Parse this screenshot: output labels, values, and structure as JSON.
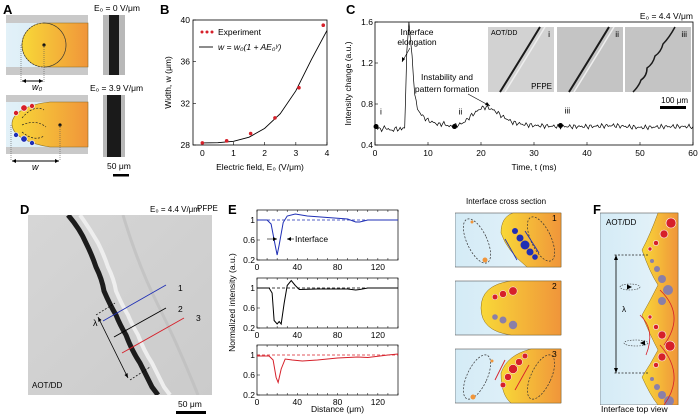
{
  "panels": {
    "A": {
      "label": "A",
      "top_field": "E₀ = 0 V/μm",
      "bottom_field": "E₀ = 3.9 V/μm",
      "w0_label": "w₀",
      "w_label": "w",
      "scalebar": "50 μm"
    },
    "B": {
      "label": "B",
      "legend_experiment": "Experiment",
      "legend_fit": "w = w₀(1 + AE₀ᵞ)"
    },
    "C": {
      "label": "C",
      "field": "E₀ = 4.4 V/μm",
      "annot_elongation_1": "Interface",
      "annot_elongation_2": "elongation",
      "annot_instability_1": "Instability and",
      "annot_instability_2": "pattern formation",
      "inset_labels": [
        "i",
        "ii",
        "iii"
      ],
      "inset_aot": "AOT/DD",
      "inset_pfpe": "PFPE",
      "scalebar": "100 μm",
      "point_labels": [
        "i",
        "ii",
        "iii"
      ]
    },
    "D": {
      "label": "D",
      "field": "E₀ = 4.4 V/μm",
      "pfpe": "PFPE",
      "aot": "AOT/DD",
      "lambda": "λ",
      "line_labels": [
        "1",
        "2",
        "3"
      ],
      "scalebar": "50 μm"
    },
    "E": {
      "label": "E",
      "interface_annot": "Interface",
      "cross_section_title": "Interface cross section",
      "cross_section_numbers": [
        "1",
        "2",
        "3"
      ]
    },
    "F": {
      "label": "F",
      "aot": "AOT/DD",
      "lambda": "λ",
      "caption": "Interface top view"
    }
  },
  "colors": {
    "blue": "#1f2fb5",
    "red": "#d6202a",
    "orange": "#f29a3c",
    "yellow": "#f7d23a",
    "lightblue": "#d8ecf6",
    "gray": "#c8c8c8",
    "ion_neg_gray": "#8a7fa8"
  },
  "chart_data": [
    {
      "id": "B",
      "type": "scatter",
      "title": "",
      "xlabel": "Electric field, E₀ (V/μm)",
      "ylabel": "Width, w (μm)",
      "xlim": [
        -0.3,
        4
      ],
      "ylim": [
        28,
        40
      ],
      "xticks": [
        0,
        1,
        2,
        3,
        4
      ],
      "yticks": [
        28,
        32,
        36,
        40
      ],
      "series": [
        {
          "name": "Experiment",
          "x": [
            0,
            0.78,
            1.55,
            2.33,
            3.1,
            3.88
          ],
          "y": [
            28.2,
            28.4,
            29.1,
            30.6,
            33.5,
            39.5
          ]
        },
        {
          "name": "w = w₀(1 + AE₀ᵞ)",
          "x": [
            0,
            0.5,
            1.0,
            1.5,
            2.0,
            2.5,
            3.0,
            3.5,
            4.0
          ],
          "y": [
            28.2,
            28.22,
            28.35,
            28.75,
            29.6,
            31.0,
            33.2,
            36.2,
            39.0
          ]
        }
      ]
    },
    {
      "id": "C",
      "type": "line",
      "xlabel": "Time, t (ms)",
      "ylabel": "Intensity change (a.u.)",
      "xlim": [
        0,
        60
      ],
      "ylim": [
        0.4,
        1.6
      ],
      "xticks": [
        0,
        10,
        20,
        30,
        40,
        50,
        60
      ],
      "yticks": [
        0.4,
        0.8,
        1.2,
        1.6
      ],
      "series": [
        {
          "name": "intensity",
          "x": [
            0,
            1,
            2,
            3,
            4,
            5,
            5.6,
            6.0,
            6.4,
            7.0,
            7.5,
            8,
            9,
            10,
            11,
            12,
            13,
            14,
            15,
            16,
            17,
            18,
            19,
            20,
            21,
            22,
            23,
            24,
            25,
            26,
            28,
            30,
            35,
            40,
            45,
            50,
            55,
            60
          ],
          "y": [
            0.58,
            0.55,
            0.57,
            0.54,
            0.56,
            0.55,
            0.57,
            1.3,
            1.6,
            1.25,
            0.9,
            0.75,
            0.68,
            0.64,
            0.62,
            0.6,
            0.61,
            0.58,
            0.59,
            0.6,
            0.63,
            0.68,
            0.72,
            0.76,
            0.77,
            0.75,
            0.72,
            0.68,
            0.65,
            0.62,
            0.6,
            0.59,
            0.58,
            0.58,
            0.59,
            0.57,
            0.58,
            0.58
          ]
        }
      ],
      "markers": [
        {
          "label": "i",
          "x": 0.2,
          "y": 0.58
        },
        {
          "label": "ii",
          "x": 15,
          "y": 0.58
        },
        {
          "label": "iii",
          "x": 35,
          "y": 0.59
        }
      ]
    },
    {
      "id": "E",
      "type": "line",
      "xlabel": "Distance (μm)",
      "ylabel": "Normalized intensity (a.u.)",
      "xlim": [
        0,
        140
      ],
      "ylim": [
        0.2,
        1.2
      ],
      "xticks": [
        0,
        40,
        80,
        120
      ],
      "yticks": [
        0.2,
        0.6,
        1
      ],
      "subplots": [
        {
          "name": "1",
          "color": "blue",
          "x": [
            0,
            10,
            14,
            18,
            20,
            22,
            26,
            30,
            38,
            50,
            70,
            90,
            98,
            102,
            110,
            120,
            140
          ],
          "y": [
            1,
            1,
            0.92,
            0.5,
            0.3,
            0.5,
            0.95,
            1.08,
            1.12,
            1.08,
            1.05,
            1.02,
            0.96,
            0.96,
            1.0,
            1.0,
            1.0
          ]
        },
        {
          "name": "2",
          "color": "black",
          "x": [
            0,
            12,
            15,
            17,
            20,
            22,
            24,
            27,
            30,
            34,
            38,
            42,
            60,
            90,
            98,
            102,
            110,
            140
          ],
          "y": [
            1,
            1,
            0.9,
            0.35,
            0.28,
            0.33,
            0.28,
            0.7,
            1.05,
            1.15,
            1.05,
            0.97,
            0.98,
            0.98,
            0.96,
            0.97,
            1.0,
            1.0
          ]
        },
        {
          "name": "3",
          "color": "red",
          "x": [
            0,
            12,
            16,
            19,
            21,
            24,
            28,
            35,
            45,
            60,
            80,
            100,
            110,
            130,
            140
          ],
          "y": [
            0.98,
            0.98,
            0.9,
            0.55,
            0.45,
            0.72,
            0.92,
            0.9,
            0.88,
            0.9,
            0.94,
            0.96,
            0.95,
            1.0,
            1.02
          ]
        }
      ],
      "reference_line": 1
    }
  ]
}
